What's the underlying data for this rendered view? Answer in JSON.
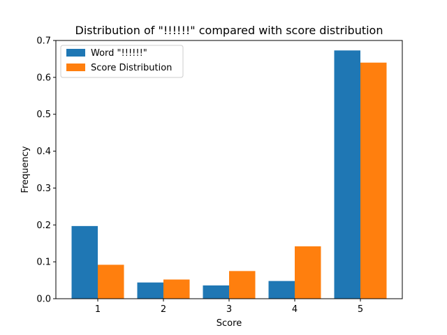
{
  "chart_data": {
    "type": "bar",
    "title": "Distribution of \"!!!!!!\" compared with score distribution",
    "xlabel": "Score",
    "ylabel": "Frequency",
    "categories": [
      "1",
      "2",
      "3",
      "4",
      "5"
    ],
    "series": [
      {
        "name": "Word \"!!!!!!\"",
        "color": "#1f77b4",
        "values": [
          0.197,
          0.044,
          0.036,
          0.048,
          0.673
        ]
      },
      {
        "name": "Score Distribution",
        "color": "#ff7f0e",
        "values": [
          0.092,
          0.052,
          0.075,
          0.142,
          0.64
        ]
      }
    ],
    "ylim": [
      0,
      0.7
    ],
    "yticks": [
      "0.0",
      "0.1",
      "0.2",
      "0.3",
      "0.4",
      "0.5",
      "0.6",
      "0.7"
    ],
    "grid": false,
    "legend": "top-left"
  }
}
